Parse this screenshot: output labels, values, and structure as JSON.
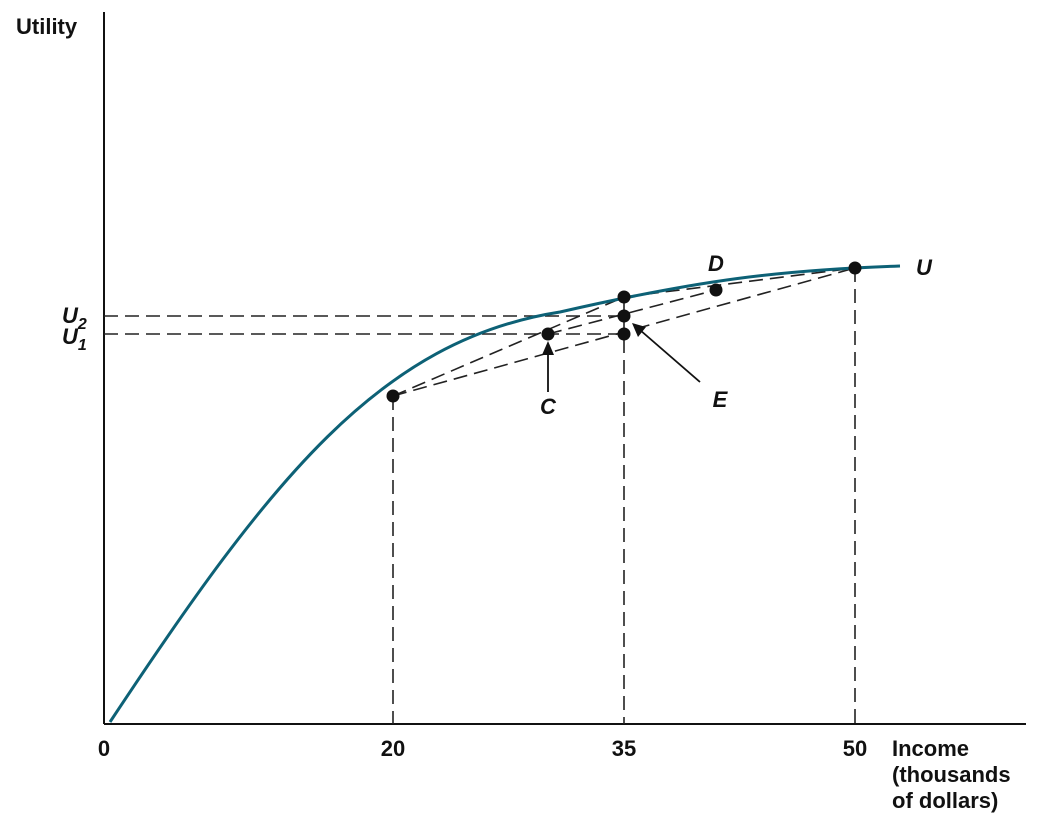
{
  "figure": {
    "y_axis_label": "Utility",
    "x_axis_label_lines": [
      "Income",
      "(thousands",
      "of dollars)"
    ],
    "x_ticks": [
      "0",
      "20",
      "35",
      "50"
    ],
    "curve_label": "U",
    "utility_levels": [
      {
        "main": "U",
        "sub": "2"
      },
      {
        "main": "U",
        "sub": "1"
      }
    ],
    "point_labels": {
      "C": "C",
      "D": "D",
      "E": "E"
    },
    "colors": {
      "curve": "#0d6176",
      "ink": "#111111"
    }
  }
}
